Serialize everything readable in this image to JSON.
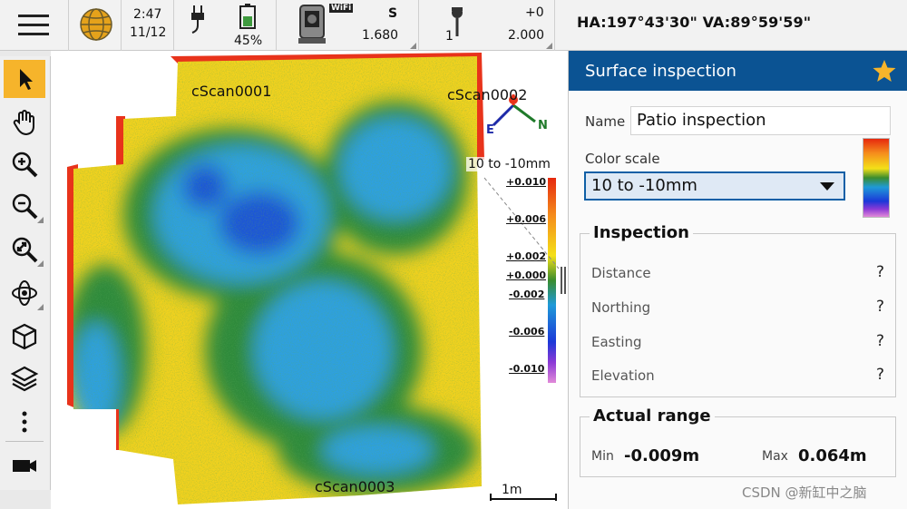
{
  "status": {
    "time": "2:47",
    "date": "11/12",
    "battery": "45%",
    "instrument_mode": "S",
    "instrument_value": "1.680",
    "wifi": "WiFi",
    "target_offset": "+0",
    "target_number": "1",
    "target_height": "2.000",
    "angles": "HA:197°43'30\"  VA:89°59'59\""
  },
  "map": {
    "scans": [
      "cScan0001",
      "cScan0002",
      "cScan0003"
    ],
    "scale_title": "10 to -10mm",
    "ticks": [
      "+0.010",
      "+0.006",
      "+0.002",
      "+0.000",
      "-0.002",
      "-0.006",
      "-0.010"
    ],
    "scalebar_label": "1m",
    "compass": {
      "east": "E",
      "north": "N"
    }
  },
  "panel": {
    "title": "Surface inspection",
    "name_label": "Name",
    "name_value": "Patio inspection",
    "color_scale_label": "Color scale",
    "color_scale_value": "10 to -10mm",
    "inspection_title": "Inspection",
    "inspection_rows": [
      {
        "label": "Distance",
        "value": "?"
      },
      {
        "label": "Northing",
        "value": "?"
      },
      {
        "label": "Easting",
        "value": "?"
      },
      {
        "label": "Elevation",
        "value": "?"
      }
    ],
    "range_title": "Actual range",
    "min_label": "Min",
    "min_value": "-0.009m",
    "max_label": "Max",
    "max_value": "0.064m"
  },
  "toolbar_icons": [
    "select-arrow-icon",
    "pan-hand-icon",
    "zoom-in-icon",
    "zoom-out-icon",
    "zoom-extents-icon",
    "orbit-icon",
    "cube-view-icon",
    "layers-icon",
    "more-icon",
    "video-camera-icon"
  ],
  "watermark": "CSDN @新缸中之脑",
  "colors": {
    "accent": "#0b5393",
    "active_tool": "#f6b42b",
    "star": "#f6b42b"
  }
}
